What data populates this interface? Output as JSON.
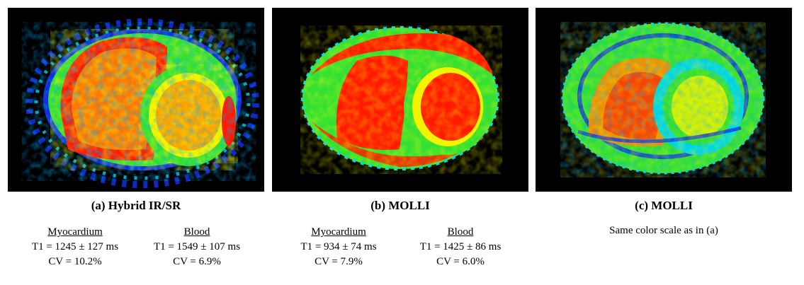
{
  "panels": [
    {
      "caption": "(a) Hybrid  IR/SR",
      "image_description": "Short-axis cardiac T1 map, hybrid IR/SR, rainbow color scale",
      "stats": [
        {
          "heading": "Myocardium",
          "t1": "T1 = 1245 ± 127 ms",
          "cv": "CV = 10.2%"
        },
        {
          "heading": "Blood",
          "t1": "T1 = 1549 ± 107 ms",
          "cv": "CV = 6.9%"
        }
      ]
    },
    {
      "caption": "(b) MOLLI",
      "image_description": "Short-axis cardiac T1 map, MOLLI, rainbow color scale",
      "stats": [
        {
          "heading": "Myocardium",
          "t1": "T1 = 934 ± 74 ms",
          "cv": "CV = 7.9%"
        },
        {
          "heading": "Blood",
          "t1": "T1 = 1425 ± 86 ms",
          "cv": "CV = 6.0%"
        }
      ]
    },
    {
      "caption": "(c) MOLLI",
      "image_description": "Short-axis cardiac T1 map, MOLLI, displayed on the same color scale as (a)",
      "note": "Same color scale as in (a)"
    }
  ],
  "colors": {
    "background": "#000000",
    "red": "#ff1a00",
    "orange": "#ff8a00",
    "yellow": "#f2f200",
    "green": "#33e033",
    "cyan": "#00d8e0",
    "blue": "#1030e0",
    "purple": "#7a00c8"
  }
}
